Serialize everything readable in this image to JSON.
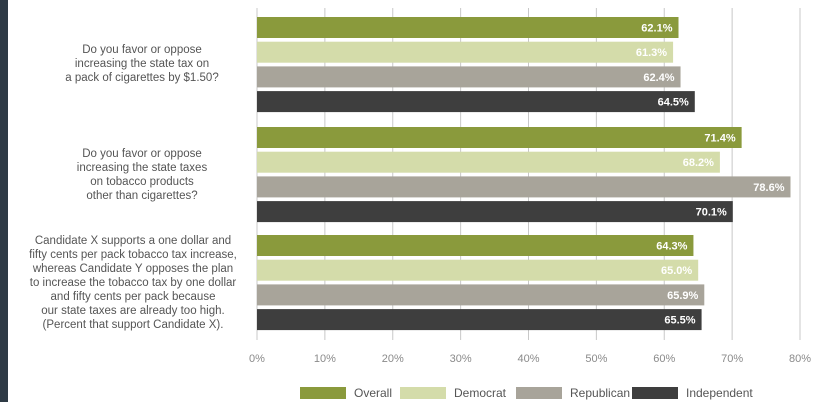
{
  "chart_data": {
    "type": "bar",
    "orientation": "horizontal",
    "categories": [
      "Do you favor or oppose\nincreasing the state tax on\na pack of cigarettes by $1.50?",
      "Do you favor or oppose\nincreasing the state taxes\non tobacco products\nother than cigarettes?",
      "Candidate X supports a one dollar and\nfifty cents per pack tobacco tax increase,\nwhereas Candidate Y opposes the plan\nto increase the tobacco tax by one dollar\nand fifty cents per pack because\nour state taxes are already too high.\n(Percent that support Candidate X)."
    ],
    "series": [
      {
        "name": "Overall",
        "color": "#8a9a3c",
        "values": [
          62.1,
          71.4,
          64.3
        ],
        "labels": [
          "62.1%",
          "71.4%",
          "64.3%"
        ]
      },
      {
        "name": "Democrat",
        "color": "#d4dcaa",
        "values": [
          61.3,
          68.2,
          65.0
        ],
        "labels": [
          "61.3%",
          "68.2%",
          "65.0%"
        ]
      },
      {
        "name": "Republican",
        "color": "#a8a49a",
        "values": [
          62.4,
          78.6,
          65.9
        ],
        "labels": [
          "62.4%",
          "78.6%",
          "65.9%"
        ]
      },
      {
        "name": "Independent",
        "color": "#3e3e3e",
        "values": [
          64.5,
          70.1,
          65.5
        ],
        "labels": [
          "64.5%",
          "70.1%",
          "65.5%"
        ]
      }
    ],
    "xlim": [
      0,
      80
    ],
    "xticks": [
      "0%",
      "10%",
      "20%",
      "30%",
      "40%",
      "50%",
      "60%",
      "70%",
      "80%"
    ],
    "grid": true,
    "legend_position": "bottom",
    "title": "",
    "xlabel": "",
    "ylabel": ""
  }
}
